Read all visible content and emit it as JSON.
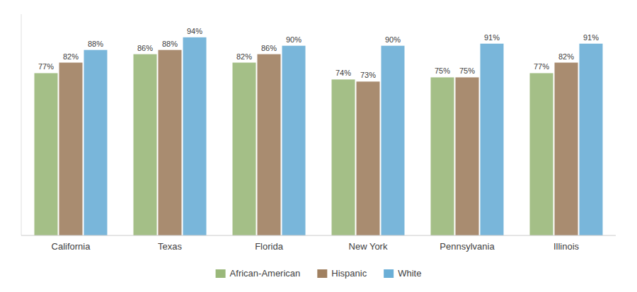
{
  "chart_data": {
    "type": "bar",
    "categories": [
      "California",
      "Texas",
      "Florida",
      "New York",
      "Pennsylvania",
      "Illinois"
    ],
    "series": [
      {
        "name": "African-American",
        "color": "#9ab87a",
        "values": [
          77,
          86,
          82,
          74,
          75,
          77
        ],
        "value_labels": [
          "77%",
          "86%",
          "82%",
          "74%",
          "75%",
          "77%"
        ]
      },
      {
        "name": "Hispanic",
        "color": "#a08060",
        "values": [
          82,
          88,
          86,
          73,
          75,
          82
        ],
        "value_labels": [
          "82%",
          "88%",
          "86%",
          "73%",
          "75%",
          "82%"
        ]
      },
      {
        "name": "White",
        "color": "#6aaed6",
        "values": [
          88,
          94,
          90,
          90,
          91,
          91
        ],
        "value_labels": [
          "88%",
          "94%",
          "90%",
          "90%",
          "91%",
          "91%"
        ]
      }
    ],
    "ylim": [
      0,
      105
    ],
    "yticks": [],
    "tick_labels": "x",
    "data_labels": true,
    "legend": "bottom",
    "grid": false
  }
}
